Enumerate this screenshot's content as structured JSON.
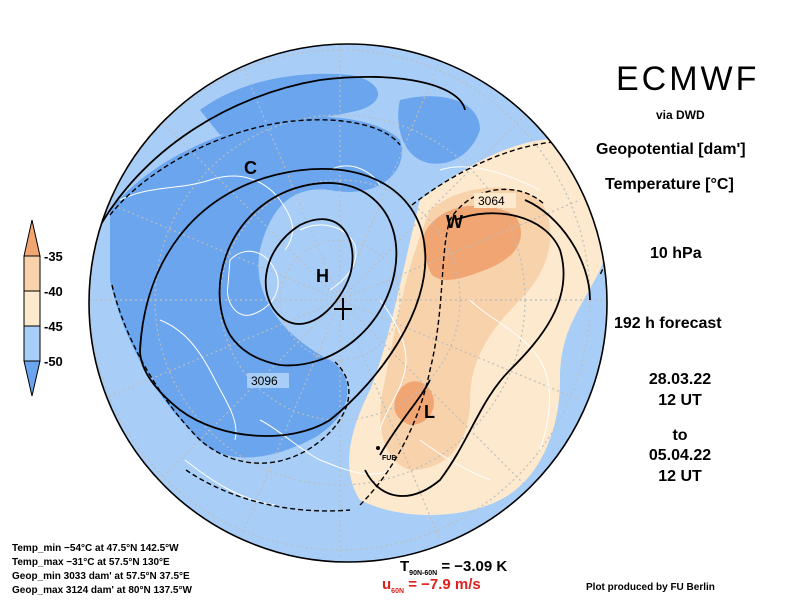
{
  "header": {
    "brand": "ECMWF",
    "via": "via DWD",
    "field1": "Geopotential [dam']",
    "field2": "Temperature [°C]",
    "level": "10 hPa",
    "forecast": "192 h forecast",
    "date_from": "28.03.22",
    "time_from": "12 UT",
    "to": "to",
    "date_to": "05.04.22",
    "time_to": "12 UT"
  },
  "legend": {
    "labels": [
      "-35",
      "-40",
      "-45",
      "-50"
    ],
    "colors": {
      "warmest": "#f0a070",
      "warm": "#f8d0a8",
      "mild": "#fce8cc",
      "cold": "#a8d0f8",
      "coldest": "#6aa4ee"
    }
  },
  "map": {
    "labels": {
      "low1": "C",
      "high1": "H",
      "high2": "W",
      "low2": "L",
      "contour1": "3064",
      "contour2": "3096",
      "station": "FUB"
    },
    "colors": {
      "cold_fill": "#a8cef7",
      "coldest_fill": "#6aa5ee",
      "warm_fill": "#f7d2ab",
      "mild_fill": "#fde9cd",
      "warmest_fill": "#f0a572",
      "coast": "#ffffff",
      "grid": "#bdbdbd",
      "contour": "#000000"
    }
  },
  "stats": {
    "temp_min": "Temp_min −54°C at 47.5°N 142.5°W",
    "temp_max": "Temp_max −31°C at 57.5°N 130°E",
    "geop_min": "Geop_min 3033 dam' at 57.5°N 37.5°E",
    "geop_max": "Geop_max 3124 dam' at 80°N 137.5°W"
  },
  "indices": {
    "t_symbol": "T",
    "t_sub": "90N-60N",
    "t_value": "= −3.09 K",
    "u_symbol": "u",
    "u_sub": "60N",
    "u_value": "= −7.9 m/s"
  },
  "credit": "Plot produced by FU Berlin"
}
